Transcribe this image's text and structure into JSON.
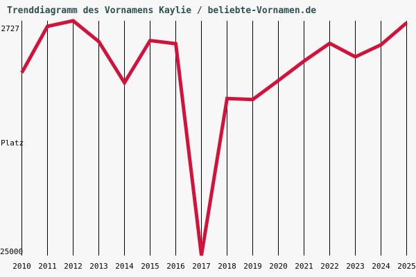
{
  "window": {
    "background": "#f7f7f7"
  },
  "header": {
    "title": "Trenddiagramm des Vornamens Kaylie / beliebte-Vornamen.de",
    "title_color": "#2f4f4f"
  },
  "y_axis": {
    "top_tick_label": "2727",
    "axis_title": "Platz",
    "bottom_tick_label": "25000"
  },
  "chart_data": {
    "type": "line",
    "title": "Trenddiagramm des Vornamens Kaylie / beliebte-Vornamen.de",
    "xlabel": "",
    "ylabel": "Platz",
    "y_axis_inverted": true,
    "ylim": [
      2727,
      25000
    ],
    "y_tick_labels": [
      "2727",
      "25000"
    ],
    "grid": "vertical",
    "legend_position": "none",
    "line_color": "#d2123b",
    "gridline_color": "#000000",
    "categories": [
      "2010",
      "2011",
      "2012",
      "2013",
      "2014",
      "2015",
      "2016",
      "2017",
      "2018",
      "2019",
      "2020",
      "2021",
      "2022",
      "2023",
      "2024",
      "2025"
    ],
    "series": [
      {
        "name": "Kaylie",
        "values": [
          7650,
          3250,
          2727,
          4700,
          8600,
          4600,
          4900,
          25000,
          10100,
          10200,
          8400,
          6550,
          4870,
          6150,
          5000,
          2920
        ]
      }
    ]
  }
}
